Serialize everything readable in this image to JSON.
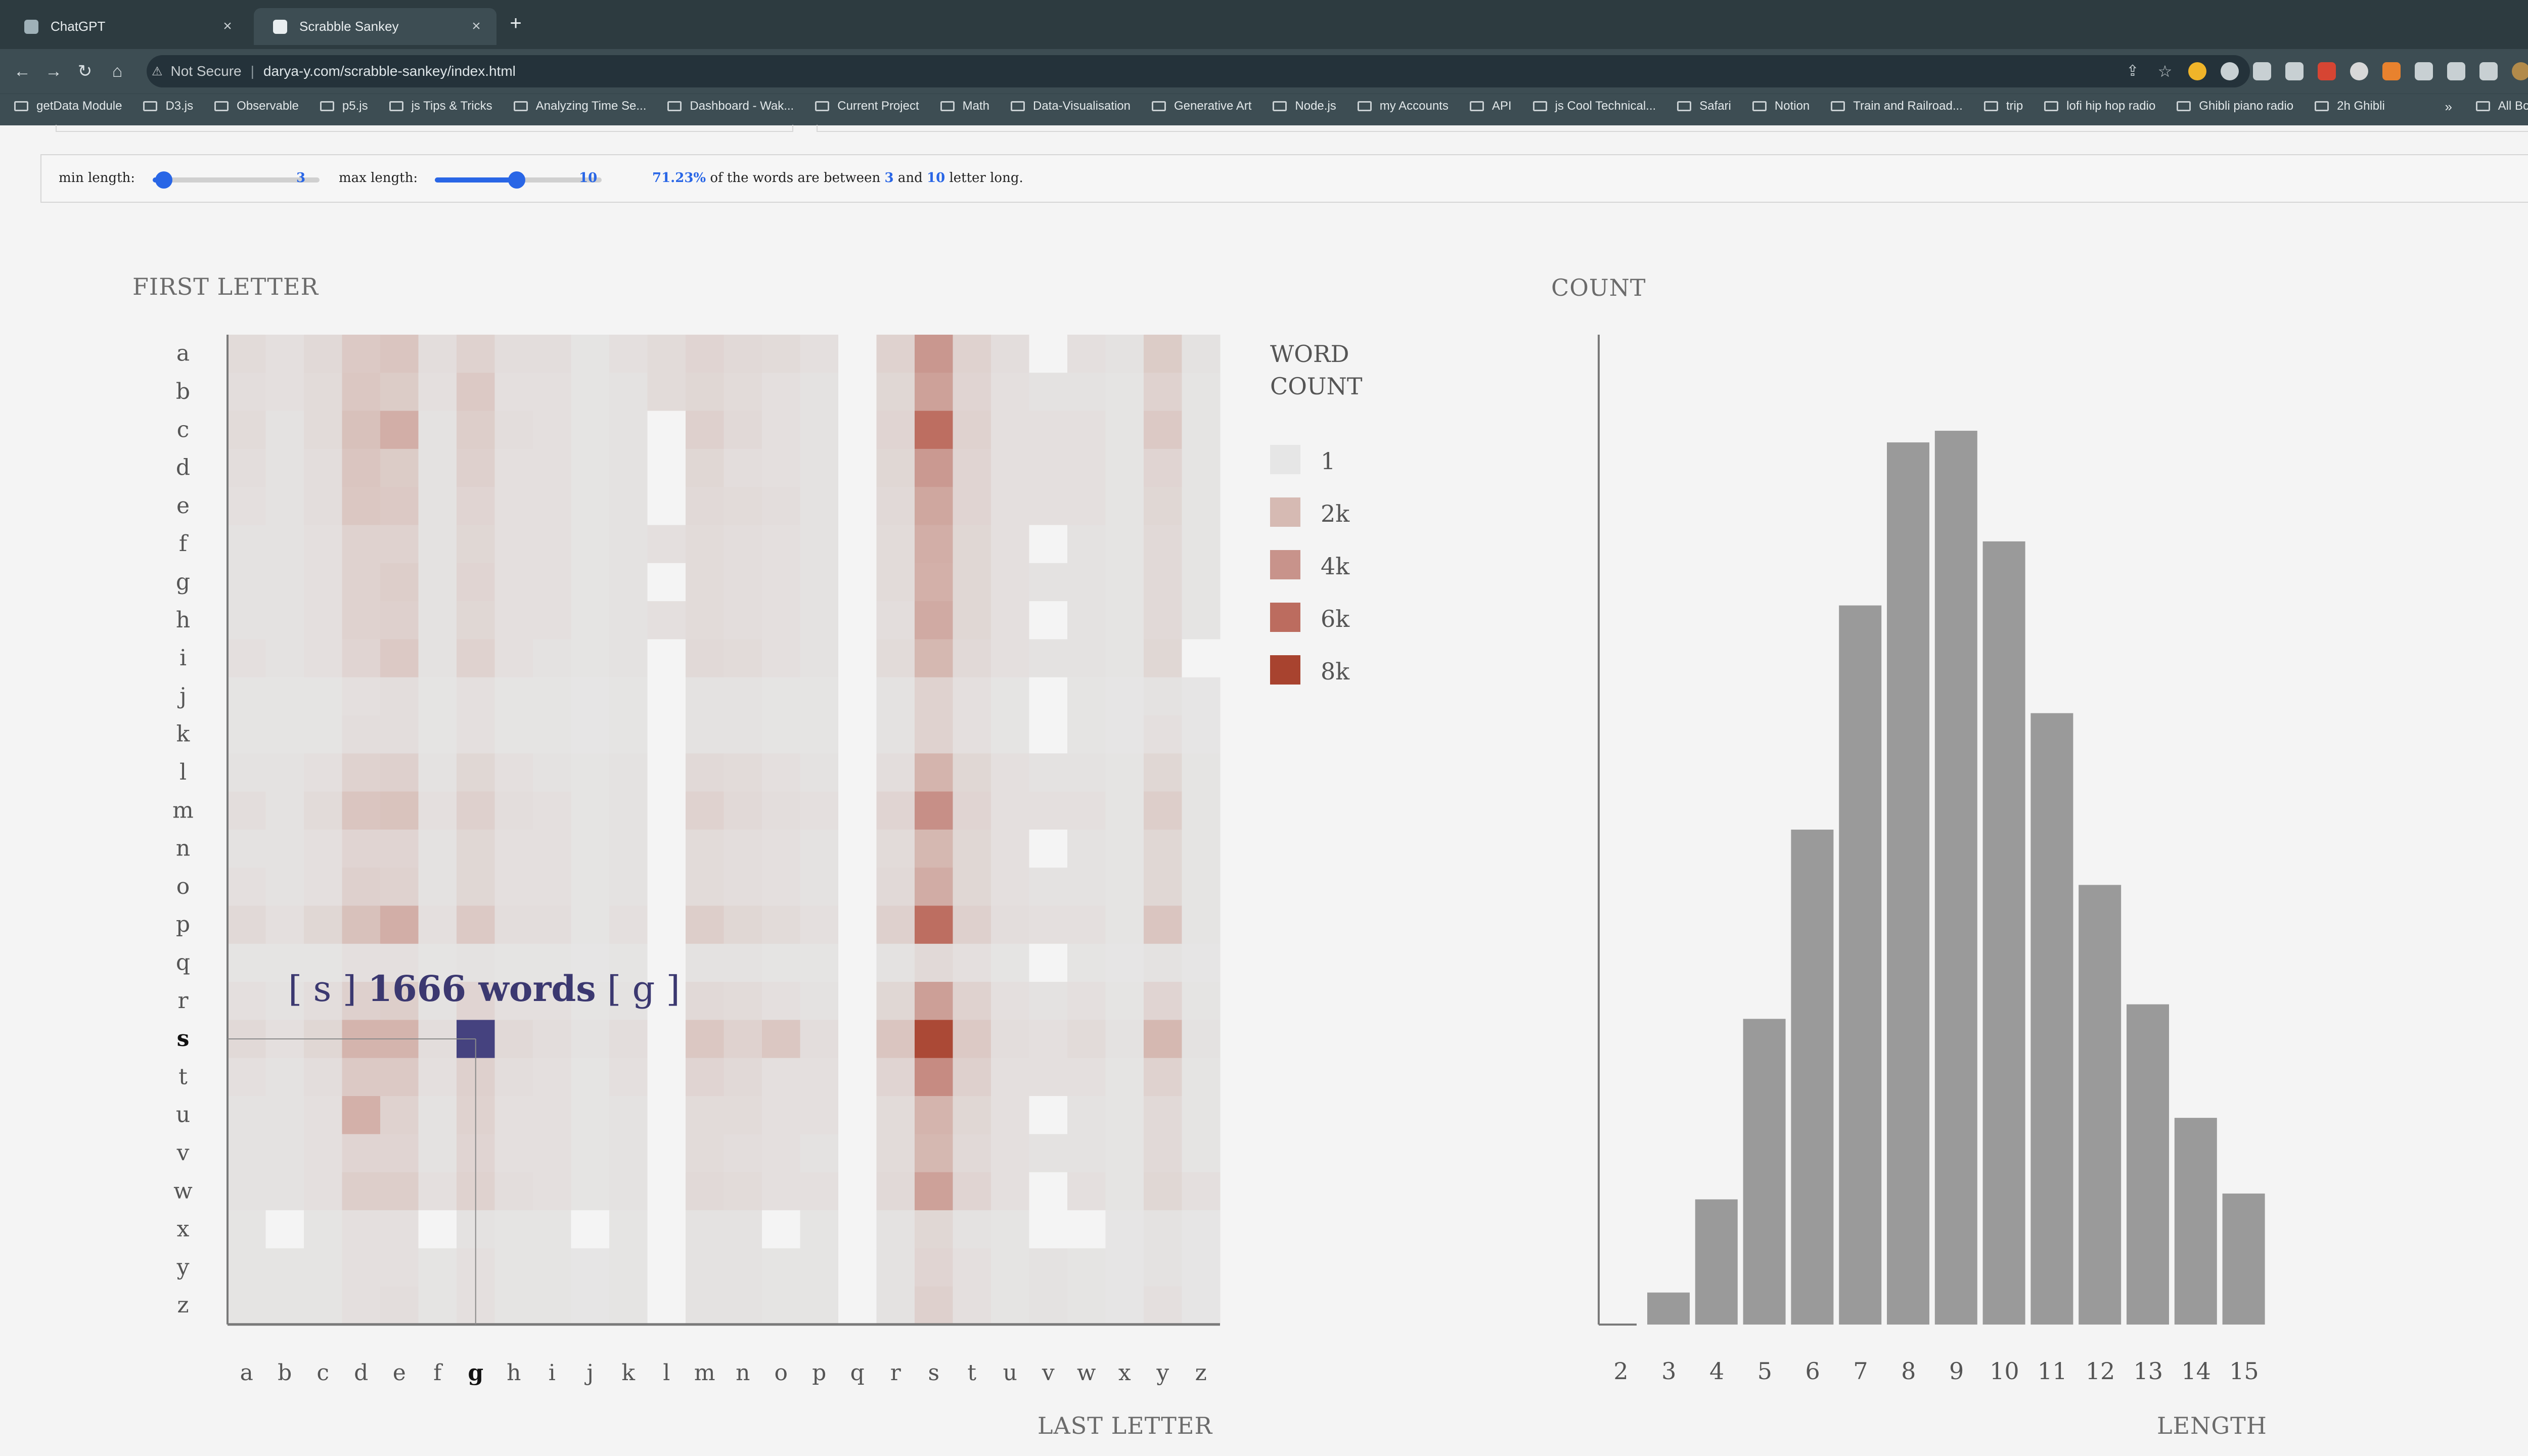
{
  "browser": {
    "tabs": [
      {
        "title": "ChatGPT",
        "active": false
      },
      {
        "title": "Scrabble Sankey",
        "active": true
      }
    ],
    "address": {
      "security": "Not Secure",
      "url": "darya-y.com/scrabble-sankey/index.html"
    },
    "bookmarks": [
      "getData Module",
      "D3.js",
      "Observable",
      "p5.js",
      "js Tips & Tricks",
      "Analyzing Time Se...",
      "Dashboard - Wak...",
      "Current Project",
      "Math",
      "Data-Visualisation",
      "Generative Art",
      "Node.js",
      "my Accounts",
      "API",
      "js Cool Technical...",
      "Safari",
      "Notion",
      "Train and Railroad...",
      "trip",
      "lofi hip hop radio",
      "Ghibli piano radio",
      "2h Ghibli"
    ],
    "bookmarks_more": "»",
    "all_bookmarks": "All Bookmarks"
  },
  "controls": {
    "min_label": "min length:",
    "min_value": "3",
    "max_label": "max length:",
    "max_value": "10",
    "summary": {
      "percent": "71.23%",
      "text1": "of the words are between",
      "min": "3",
      "and": "and",
      "max": "10",
      "text2": "letter long."
    }
  },
  "heatmap": {
    "title": "FIRST LETTER",
    "xlabel": "LAST LETTER",
    "legend_title_1": "WORD",
    "legend_title_2": "COUNT",
    "legend": [
      {
        "label": "1",
        "color": "#e6e6e6"
      },
      {
        "label": "2k",
        "color": "#d6bab3"
      },
      {
        "label": "4k",
        "color": "#c8938b"
      },
      {
        "label": "6k",
        "color": "#bc6c5f"
      },
      {
        "label": "8k",
        "color": "#a8432f"
      }
    ],
    "highlight_color": "#45427f",
    "tooltip": {
      "first": "s",
      "count_text": "1666 words",
      "last": "g"
    },
    "selected": {
      "row": "s",
      "col": "g"
    }
  },
  "chart_data": [
    {
      "type": "heatmap",
      "title": "FIRST LETTER",
      "xlabel": "LAST LETTER",
      "ylabel": "FIRST LETTER",
      "rows": [
        "a",
        "b",
        "c",
        "d",
        "e",
        "f",
        "g",
        "h",
        "i",
        "j",
        "k",
        "l",
        "m",
        "n",
        "o",
        "p",
        "q",
        "r",
        "s",
        "t",
        "u",
        "v",
        "w",
        "x",
        "y",
        "z"
      ],
      "cols": [
        "a",
        "b",
        "c",
        "d",
        "e",
        "f",
        "g",
        "h",
        "i",
        "j",
        "k",
        "l",
        "m",
        "n",
        "o",
        "p",
        "q",
        "r",
        "s",
        "t",
        "u",
        "v",
        "w",
        "x",
        "y",
        "z"
      ],
      "values": [
        [
          500,
          300,
          600,
          1300,
          1500,
          400,
          900,
          400,
          400,
          100,
          300,
          500,
          800,
          600,
          500,
          300,
          0,
          900,
          3800,
          900,
          400,
          0,
          300,
          200,
          1200,
          200
        ],
        [
          400,
          300,
          500,
          1400,
          1200,
          300,
          1300,
          300,
          300,
          100,
          200,
          500,
          700,
          500,
          300,
          200,
          0,
          700,
          3300,
          800,
          300,
          200,
          200,
          100,
          900,
          100
        ],
        [
          500,
          200,
          500,
          1700,
          2600,
          200,
          1100,
          400,
          300,
          100,
          200,
          0,
          1000,
          600,
          300,
          200,
          0,
          800,
          5900,
          900,
          300,
          300,
          300,
          100,
          1300,
          100
        ],
        [
          400,
          200,
          400,
          1500,
          1200,
          200,
          1000,
          300,
          300,
          100,
          200,
          0,
          700,
          400,
          300,
          200,
          0,
          700,
          3700,
          800,
          300,
          300,
          300,
          100,
          800,
          100
        ],
        [
          300,
          200,
          400,
          1400,
          1300,
          200,
          800,
          300,
          300,
          100,
          200,
          0,
          600,
          500,
          400,
          200,
          0,
          600,
          3000,
          800,
          300,
          300,
          300,
          100,
          700,
          100
        ],
        [
          200,
          200,
          300,
          900,
          900,
          200,
          700,
          300,
          300,
          100,
          200,
          300,
          500,
          400,
          300,
          200,
          0,
          500,
          2600,
          700,
          300,
          0,
          200,
          100,
          600,
          100
        ],
        [
          200,
          200,
          300,
          900,
          1100,
          200,
          800,
          300,
          300,
          100,
          200,
          0,
          500,
          400,
          300,
          200,
          0,
          500,
          2500,
          700,
          300,
          200,
          200,
          100,
          600,
          100
        ],
        [
          200,
          200,
          300,
          900,
          1000,
          200,
          700,
          300,
          300,
          100,
          200,
          300,
          500,
          400,
          300,
          200,
          0,
          400,
          2800,
          700,
          300,
          0,
          200,
          100,
          600,
          100
        ],
        [
          300,
          200,
          300,
          800,
          1300,
          200,
          900,
          300,
          200,
          100,
          200,
          0,
          600,
          500,
          300,
          200,
          0,
          500,
          2100,
          600,
          300,
          200,
          200,
          100,
          700,
          0
        ],
        [
          100,
          100,
          100,
          300,
          400,
          100,
          300,
          100,
          100,
          50,
          100,
          0,
          200,
          200,
          100,
          100,
          0,
          200,
          900,
          300,
          100,
          0,
          100,
          50,
          200,
          50
        ],
        [
          100,
          100,
          100,
          400,
          400,
          100,
          300,
          100,
          100,
          50,
          100,
          0,
          200,
          200,
          100,
          100,
          0,
          200,
          900,
          300,
          100,
          0,
          100,
          50,
          300,
          50
        ],
        [
          200,
          200,
          300,
          900,
          1000,
          200,
          700,
          300,
          200,
          100,
          200,
          0,
          600,
          500,
          300,
          200,
          0,
          400,
          2300,
          700,
          300,
          200,
          200,
          100,
          700,
          100
        ],
        [
          400,
          200,
          500,
          1500,
          1600,
          300,
          1000,
          400,
          300,
          100,
          200,
          0,
          900,
          600,
          400,
          300,
          0,
          800,
          4200,
          800,
          300,
          300,
          300,
          100,
          1100,
          100
        ],
        [
          200,
          200,
          300,
          800,
          800,
          200,
          700,
          300,
          300,
          100,
          200,
          0,
          500,
          400,
          300,
          200,
          0,
          500,
          2100,
          700,
          300,
          0,
          200,
          100,
          700,
          100
        ],
        [
          300,
          200,
          300,
          1000,
          900,
          200,
          700,
          300,
          300,
          100,
          200,
          0,
          500,
          400,
          300,
          200,
          0,
          600,
          2700,
          700,
          300,
          200,
          200,
          100,
          700,
          100
        ],
        [
          600,
          300,
          700,
          1700,
          2600,
          300,
          1300,
          400,
          400,
          100,
          300,
          0,
          1100,
          700,
          500,
          300,
          0,
          1000,
          5900,
          1000,
          400,
          300,
          300,
          100,
          1500,
          100
        ],
        [
          100,
          100,
          100,
          300,
          300,
          100,
          200,
          100,
          100,
          50,
          100,
          0,
          200,
          200,
          100,
          100,
          0,
          200,
          600,
          300,
          100,
          0,
          100,
          50,
          200,
          50
        ],
        [
          300,
          200,
          400,
          1000,
          1100,
          200,
          800,
          300,
          300,
          100,
          200,
          0,
          600,
          500,
          300,
          200,
          0,
          700,
          3400,
          900,
          300,
          200,
          300,
          100,
          800,
          100
        ],
        [
          600,
          300,
          700,
          2300,
          2300,
          400,
          1666,
          600,
          400,
          200,
          400,
          0,
          1400,
          900,
          1400,
          400,
          0,
          1500,
          7700,
          1300,
          400,
          300,
          500,
          200,
          2100,
          200
        ],
        [
          300,
          200,
          400,
          1300,
          1300,
          300,
          1000,
          400,
          300,
          100,
          300,
          0,
          800,
          600,
          300,
          300,
          0,
          800,
          4400,
          1000,
          300,
          300,
          300,
          100,
          900,
          100
        ],
        [
          200,
          200,
          300,
          2500,
          900,
          200,
          900,
          300,
          300,
          100,
          200,
          0,
          500,
          500,
          300,
          300,
          0,
          500,
          2300,
          700,
          300,
          0,
          200,
          100,
          600,
          100
        ],
        [
          200,
          200,
          300,
          800,
          800,
          200,
          800,
          300,
          300,
          100,
          200,
          0,
          500,
          400,
          300,
          200,
          0,
          500,
          2100,
          600,
          300,
          200,
          200,
          100,
          600,
          100
        ],
        [
          200,
          200,
          300,
          1100,
          1100,
          300,
          900,
          400,
          300,
          100,
          200,
          0,
          600,
          500,
          300,
          300,
          0,
          600,
          3300,
          800,
          300,
          0,
          300,
          100,
          700,
          300
        ],
        [
          100,
          0,
          100,
          300,
          300,
          0,
          200,
          100,
          100,
          0,
          100,
          0,
          200,
          200,
          0,
          100,
          0,
          200,
          700,
          200,
          100,
          0,
          0,
          50,
          200,
          50
        ],
        [
          100,
          100,
          100,
          300,
          300,
          100,
          300,
          100,
          100,
          50,
          100,
          0,
          200,
          200,
          100,
          100,
          0,
          200,
          800,
          300,
          100,
          200,
          100,
          50,
          200,
          50
        ],
        [
          100,
          100,
          100,
          300,
          400,
          100,
          300,
          100,
          100,
          50,
          100,
          0,
          200,
          200,
          100,
          100,
          0,
          200,
          1000,
          300,
          100,
          200,
          100,
          50,
          300,
          50
        ]
      ]
    },
    {
      "type": "bar",
      "title": "COUNT",
      "xlabel": "LENGTH",
      "ylabel": "COUNT",
      "categories": [
        "2",
        "3",
        "4",
        "5",
        "6",
        "7",
        "8",
        "9",
        "10",
        "11",
        "12",
        "13",
        "14",
        "15"
      ],
      "values": [
        120,
        1100,
        4300,
        10500,
        17000,
        24700,
        30300,
        30700,
        26900,
        21000,
        15100,
        11000,
        7100,
        4500
      ],
      "color": "#9a9a9a",
      "ylim": [
        0,
        34000
      ]
    }
  ]
}
